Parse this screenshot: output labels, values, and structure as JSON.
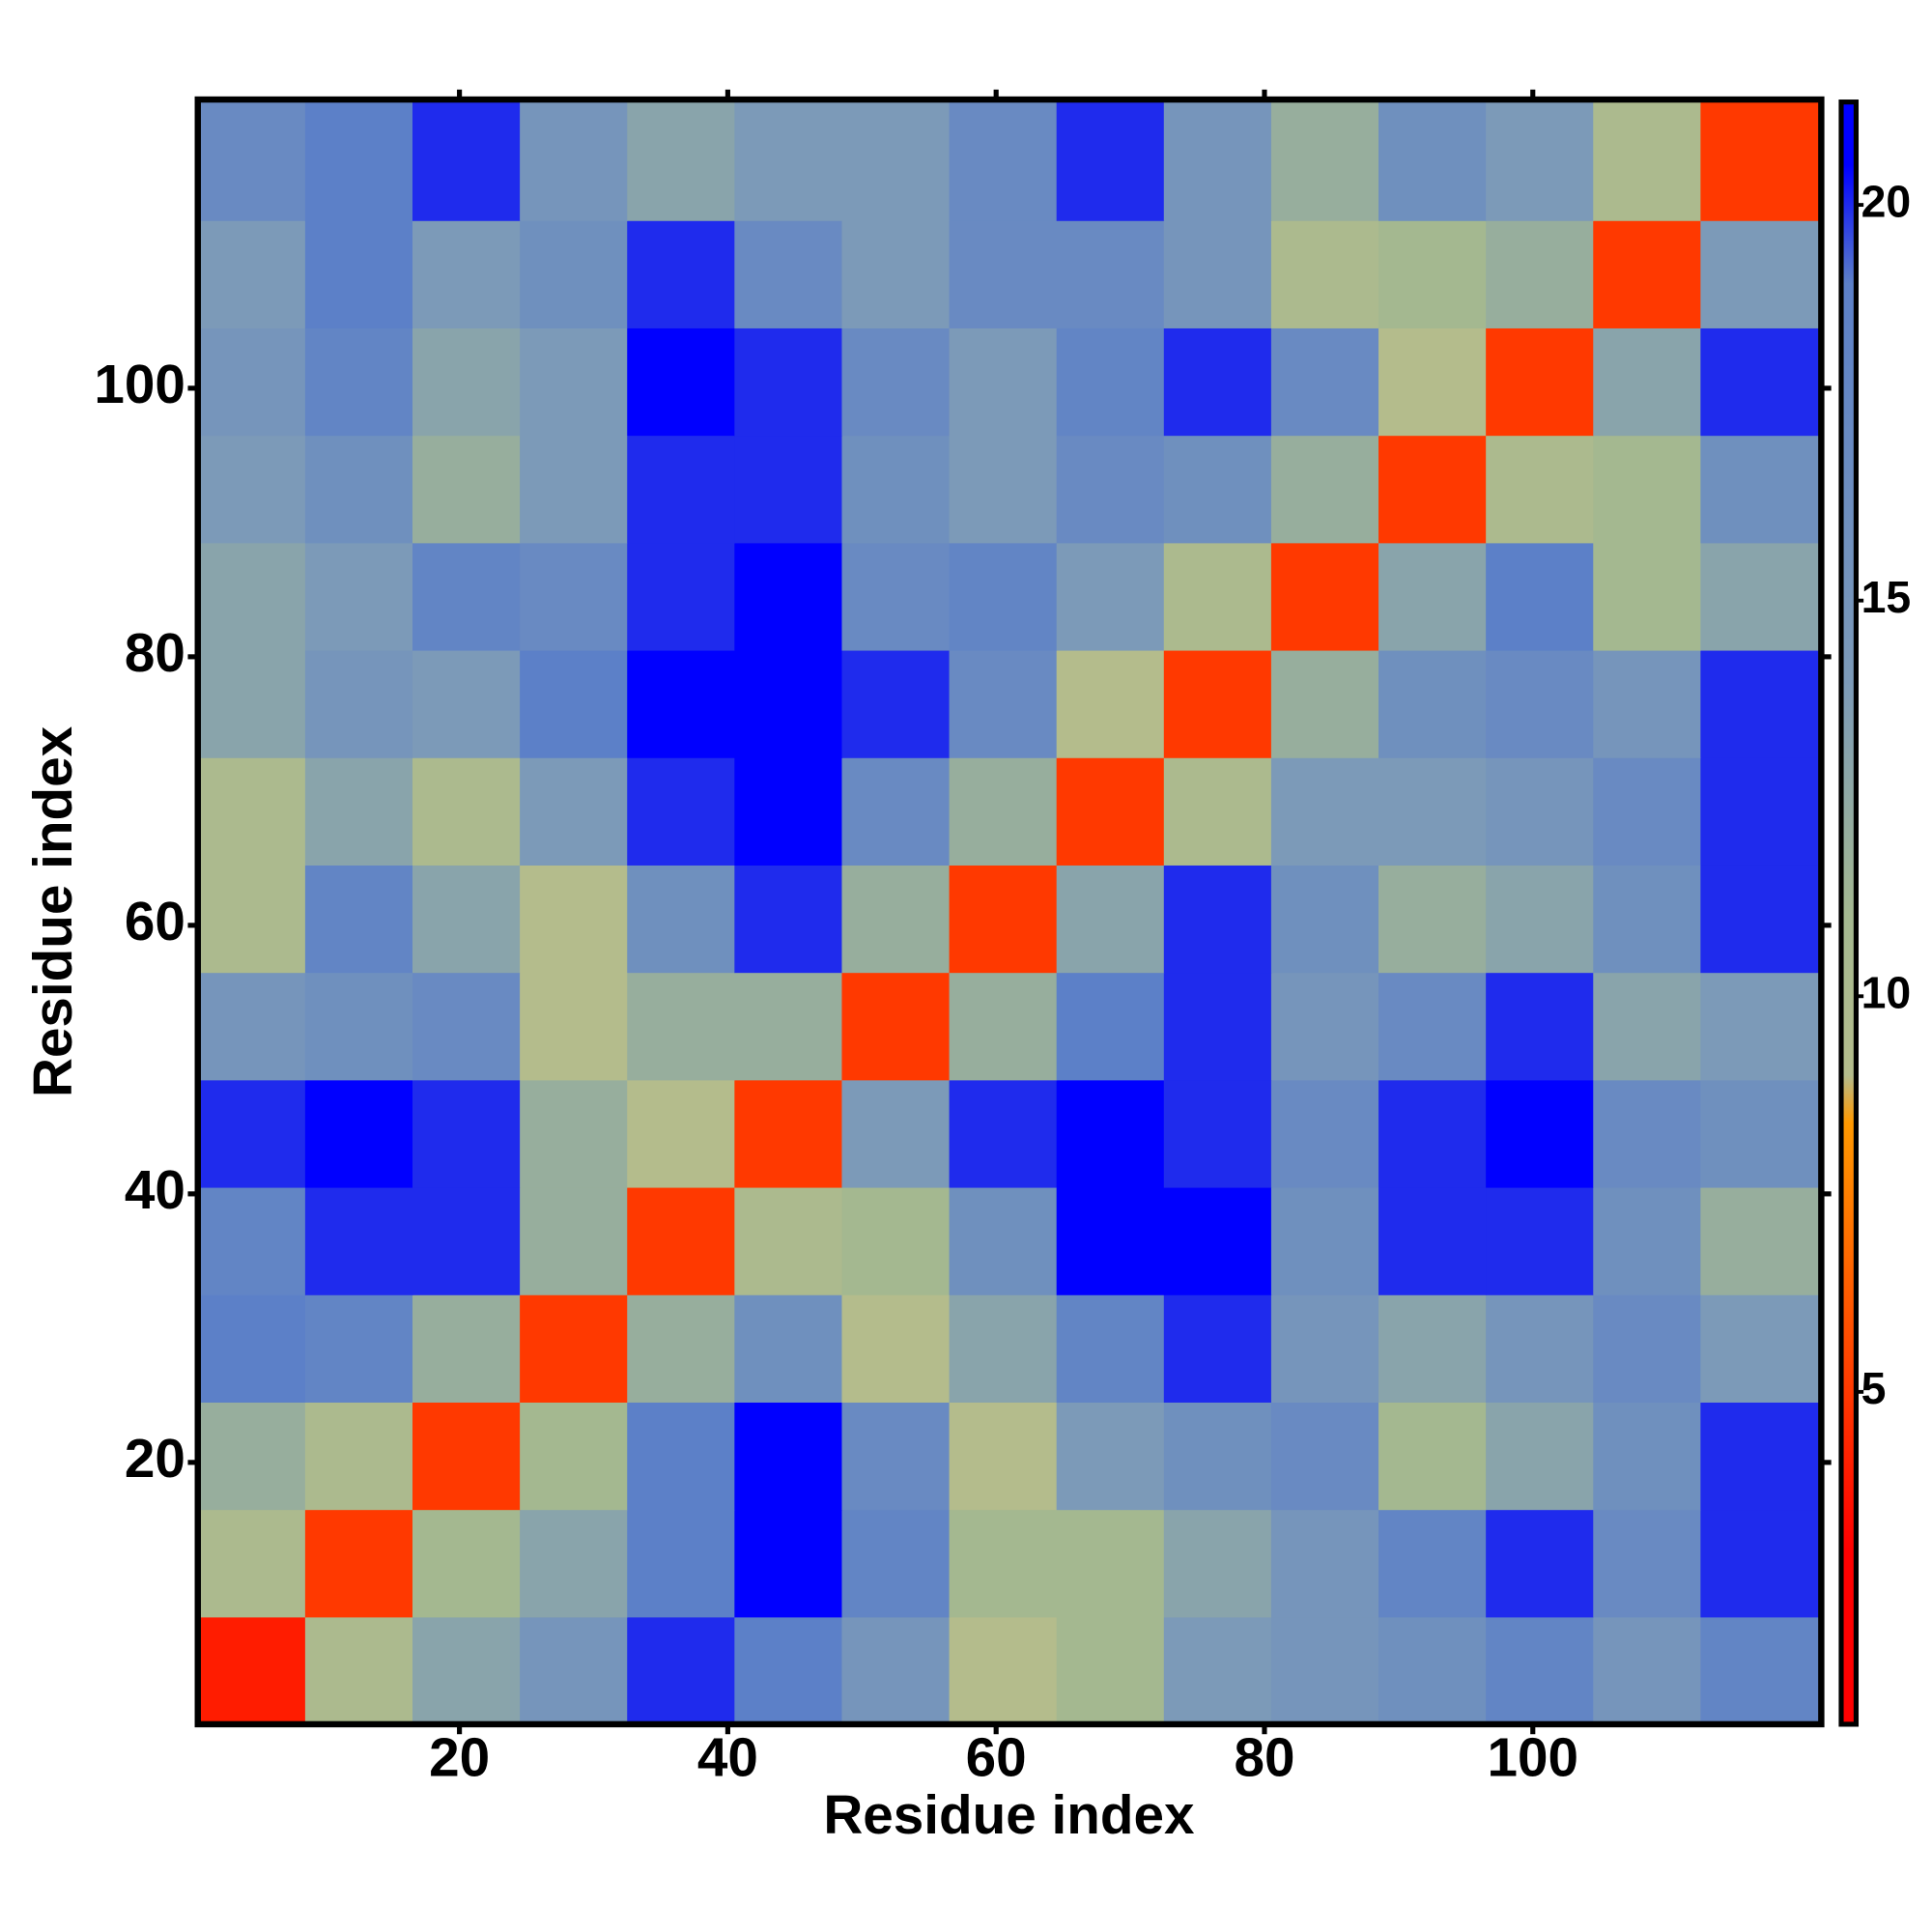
{
  "chart_data": {
    "type": "heatmap",
    "xlabel": "Residue index",
    "ylabel": "Residue index",
    "xbins": [
      0.5,
      8.5,
      16.5,
      24.5,
      32.5,
      40.5,
      48.5,
      56.5,
      64.5,
      72.5,
      80.5,
      88.5,
      96.5,
      104.5,
      112.5,
      121.5
    ],
    "ybins": [
      0.5,
      8.5,
      16.5,
      24.5,
      32.5,
      40.5,
      48.5,
      56.5,
      64.5,
      72.5,
      80.5,
      88.5,
      96.5,
      104.5,
      112.5,
      121.5
    ],
    "values": [
      [
        4,
        10,
        13,
        15,
        20,
        19,
        15,
        9,
        11,
        14,
        15,
        16,
        18,
        15,
        18
      ],
      [
        10,
        5,
        11,
        13,
        19,
        21,
        18,
        11,
        11,
        13,
        15,
        18,
        20,
        17,
        20
      ],
      [
        12,
        10,
        5,
        11,
        19,
        21,
        17,
        9,
        14,
        16,
        17,
        11,
        13,
        16,
        20
      ],
      [
        19,
        18,
        12,
        5,
        12,
        16,
        9,
        13,
        18,
        20,
        15,
        13,
        15,
        17,
        14
      ],
      [
        18,
        20,
        20,
        12,
        5,
        10,
        11,
        16,
        21,
        21,
        16,
        20,
        20,
        16,
        12
      ],
      [
        20,
        21,
        20,
        12,
        9,
        5,
        14,
        20,
        21,
        20,
        17,
        20,
        21,
        17,
        16
      ],
      [
        15,
        16,
        17,
        9,
        12,
        12,
        5,
        12,
        19,
        20,
        15,
        17,
        20,
        13,
        14
      ],
      [
        10,
        18,
        13,
        9,
        16,
        20,
        12,
        5,
        13,
        20,
        16,
        12,
        13,
        16,
        20
      ],
      [
        10,
        13,
        10,
        14,
        20,
        21,
        17,
        12,
        5,
        10,
        14,
        14,
        15,
        17,
        20
      ],
      [
        13,
        15,
        14,
        19,
        21,
        21,
        20,
        17,
        9,
        5,
        12,
        16,
        17,
        15,
        20
      ],
      [
        13,
        14,
        18,
        17,
        20,
        21,
        17,
        18,
        14,
        10,
        5,
        13,
        19,
        11,
        13
      ],
      [
        14,
        16,
        12,
        14,
        20,
        20,
        16,
        14,
        17,
        16,
        12,
        5,
        10,
        11,
        16
      ],
      [
        15,
        18,
        13,
        14,
        21,
        20,
        17,
        14,
        18,
        20,
        17,
        9,
        5,
        13,
        20
      ],
      [
        14,
        19,
        14,
        16,
        20,
        17,
        14,
        17,
        17,
        15,
        10,
        11,
        12,
        5,
        14
      ],
      [
        17,
        19,
        20,
        15,
        13,
        14,
        14,
        17,
        20,
        15,
        12,
        16,
        14,
        10,
        5
      ]
    ],
    "xlim": [
      0.5,
      121.5
    ],
    "ylim": [
      0.5,
      121.5
    ],
    "xticks": [
      20,
      40,
      60,
      80,
      100
    ],
    "yticks": [
      20,
      40,
      60,
      80,
      100
    ],
    "clim": [
      0.8,
      21.3
    ],
    "cticks": [
      5,
      10,
      15,
      20
    ],
    "colorscale": [
      {
        "value": 0.8,
        "color": "#ff0000"
      },
      {
        "value": 3,
        "color": "#ff0000"
      },
      {
        "value": 8.4,
        "color": "#ff9900"
      },
      {
        "value": 9,
        "color": "#b4bc8c"
      },
      {
        "value": 11,
        "color": "#a4b890"
      },
      {
        "value": 14,
        "color": "#7c9ab8"
      },
      {
        "value": 19,
        "color": "#5c80c8"
      },
      {
        "value": 20.5,
        "color": "#0000ff"
      },
      {
        "value": 21.3,
        "color": "#0000ff"
      }
    ]
  }
}
